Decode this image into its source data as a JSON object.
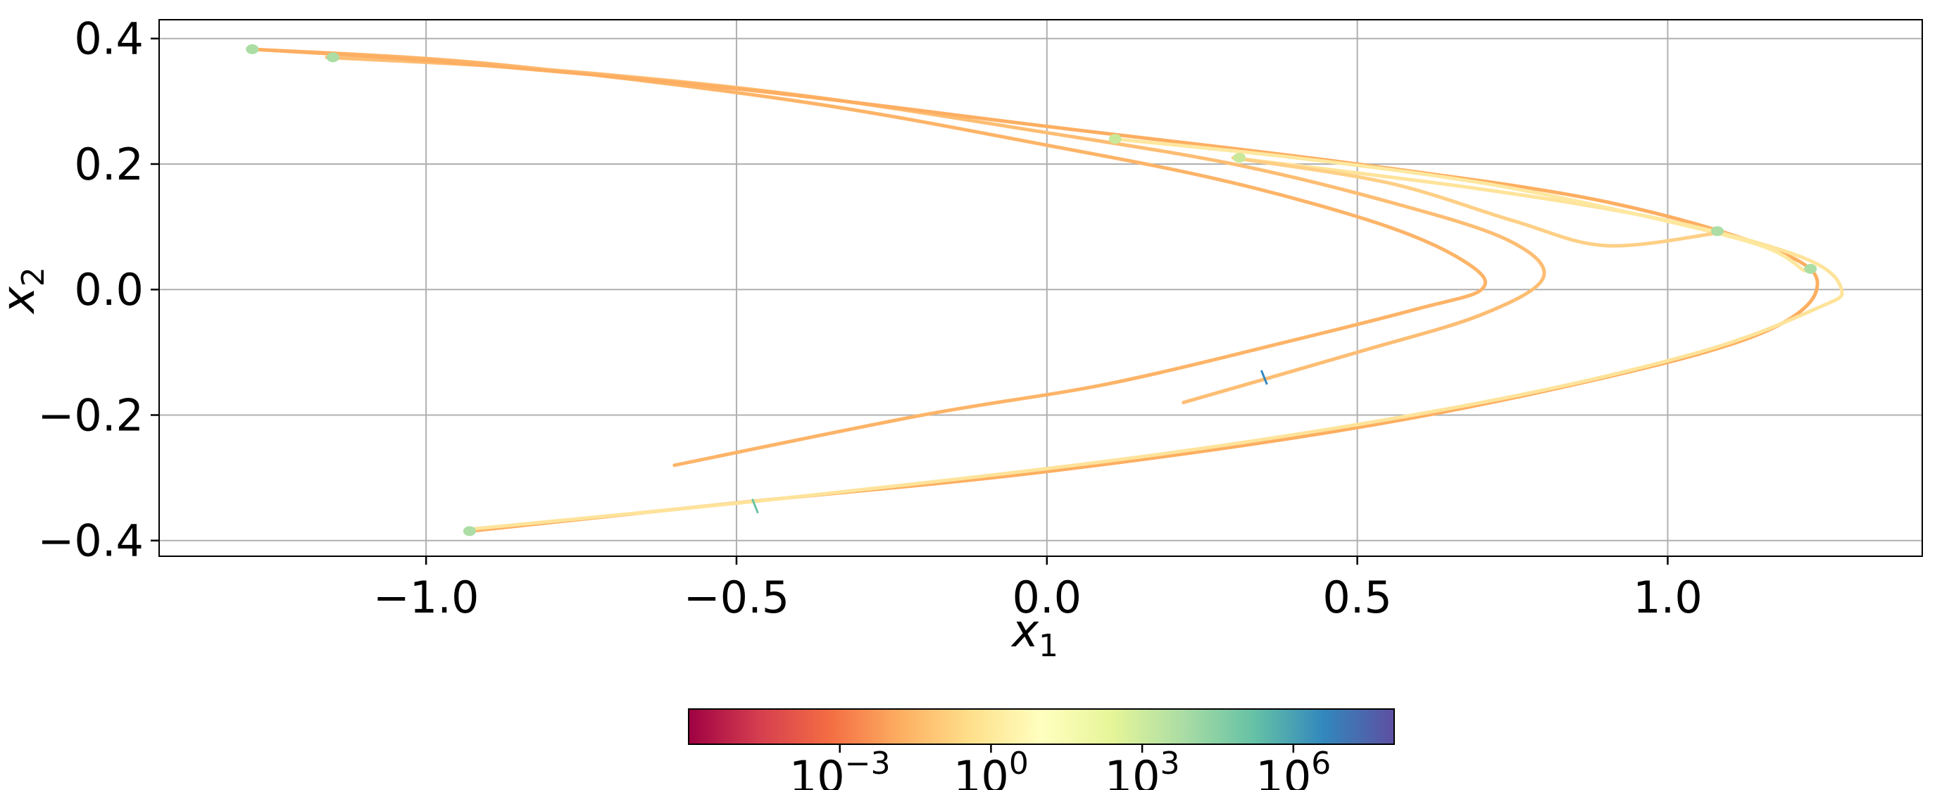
{
  "chart_data": {
    "type": "line",
    "xlabel": "x",
    "xlabel_sub": "1",
    "ylabel": "x",
    "ylabel_sub": "2",
    "xlim": [
      -1.43,
      1.41
    ],
    "ylim": [
      -0.425,
      0.43
    ],
    "x_ticks": [
      -1.0,
      -0.5,
      0.0,
      0.5,
      1.0
    ],
    "x_tick_labels": [
      "−1.0",
      "−0.5",
      "0.0",
      "0.5",
      "1.0"
    ],
    "y_ticks": [
      0.4,
      0.2,
      0.0,
      -0.2,
      -0.4
    ],
    "y_tick_labels": [
      "0.4",
      "0.2",
      "0.0",
      "−0.2",
      "−0.4"
    ],
    "grid": true,
    "colormap": "Spectral",
    "colormap_stops": [
      "#9e0142",
      "#d53e4f",
      "#f46d43",
      "#fdae61",
      "#fee08b",
      "#ffffbf",
      "#e6f598",
      "#abdda4",
      "#66c2a5",
      "#3288bd",
      "#5e4fa2"
    ],
    "colorbar": {
      "scale": "log",
      "range_exp": [
        -6,
        8
      ],
      "tick_exps": [
        -3,
        0,
        3,
        6
      ],
      "tick_base": "10",
      "tick_exp_labels": [
        "−3",
        "0",
        "3",
        "6"
      ],
      "position": "bottom"
    },
    "series": [
      {
        "color": "#fdb468",
        "points": [
          [
            -0.6,
            -0.28
          ],
          [
            -0.2,
            -0.2
          ],
          [
            0.1,
            -0.15
          ],
          [
            0.4,
            -0.08
          ],
          [
            0.6,
            -0.03
          ],
          [
            0.7,
            0.0
          ],
          [
            0.68,
            0.04
          ],
          [
            0.55,
            0.1
          ],
          [
            0.3,
            0.17
          ],
          [
            0.0,
            0.23
          ],
          [
            -0.4,
            0.3
          ],
          [
            -0.9,
            0.36
          ],
          [
            -1.28,
            0.383
          ]
        ]
      },
      {
        "color": "#fdbd73",
        "points": [
          [
            0.22,
            -0.18
          ],
          [
            0.5,
            -0.1
          ],
          [
            0.7,
            -0.04
          ],
          [
            0.8,
            0.02
          ],
          [
            0.74,
            0.08
          ],
          [
            0.55,
            0.14
          ],
          [
            0.3,
            0.2
          ],
          [
            0.0,
            0.25
          ],
          [
            -0.4,
            0.31
          ],
          [
            -0.8,
            0.35
          ],
          [
            -1.16,
            0.37
          ]
        ]
      },
      {
        "color": "#fdae61",
        "points": [
          [
            -0.93,
            -0.385
          ],
          [
            -0.5,
            -0.34
          ],
          [
            0.0,
            -0.29
          ],
          [
            0.5,
            -0.22
          ],
          [
            0.9,
            -0.14
          ],
          [
            1.15,
            -0.07
          ],
          [
            1.24,
            0.0
          ],
          [
            1.18,
            0.06
          ],
          [
            0.9,
            0.14
          ],
          [
            0.5,
            0.2
          ],
          [
            0.0,
            0.26
          ],
          [
            -0.5,
            0.32
          ],
          [
            -1.0,
            0.365
          ],
          [
            -1.28,
            0.383
          ]
        ]
      },
      {
        "color": "#fee39a",
        "points": [
          [
            -0.93,
            -0.382
          ],
          [
            -0.4,
            -0.33
          ],
          [
            0.2,
            -0.26
          ],
          [
            0.7,
            -0.18
          ],
          [
            1.05,
            -0.1
          ],
          [
            1.24,
            -0.03
          ],
          [
            1.28,
            0.0
          ],
          [
            1.22,
            0.05
          ],
          [
            1.0,
            0.11
          ],
          [
            0.7,
            0.16
          ],
          [
            0.3,
            0.21
          ]
        ]
      },
      {
        "color": "#fee8a0",
        "points": [
          [
            0.11,
            0.24
          ],
          [
            0.4,
            0.21
          ],
          [
            0.7,
            0.17
          ],
          [
            0.95,
            0.12
          ],
          [
            1.15,
            0.07
          ],
          [
            1.22,
            0.03
          ]
        ]
      },
      {
        "color": "#fecf85",
        "points": [
          [
            0.3,
            0.21
          ],
          [
            0.55,
            0.17
          ],
          [
            0.75,
            0.11
          ],
          [
            0.9,
            0.07
          ],
          [
            1.08,
            0.09
          ]
        ]
      }
    ],
    "markers": [
      {
        "x": -1.28,
        "y": 0.383,
        "color": "#abdda4"
      },
      {
        "x": -1.15,
        "y": 0.37,
        "color": "#abdda4"
      },
      {
        "x": -0.93,
        "y": -0.385,
        "color": "#abdda4"
      },
      {
        "x": 0.11,
        "y": 0.24,
        "color": "#c9e89a"
      },
      {
        "x": 0.31,
        "y": 0.21,
        "color": "#c9e89a"
      },
      {
        "x": 1.08,
        "y": 0.093,
        "color": "#abdda4"
      },
      {
        "x": 1.23,
        "y": 0.033,
        "color": "#abdda4"
      }
    ],
    "dashes": [
      {
        "x": 0.35,
        "y": -0.14,
        "color": "#3288bd"
      },
      {
        "x": -0.47,
        "y": -0.345,
        "color": "#66c2a5"
      }
    ]
  }
}
